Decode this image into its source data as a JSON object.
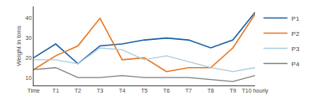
{
  "chart_data": {
    "type": "line",
    "categories": [
      "Time",
      "T1",
      "T2",
      "T3",
      "T4",
      "T5",
      "T6",
      "T7",
      "T8",
      "T9",
      "T10 hourly"
    ],
    "series": [
      {
        "name": "P1",
        "color": "#1a5fa8",
        "values": [
          20,
          27,
          17,
          26,
          27,
          29,
          30,
          29,
          25,
          29,
          43
        ]
      },
      {
        "name": "P2",
        "color": "#e8761e",
        "values": [
          14,
          21,
          26,
          40,
          19,
          20,
          13,
          15,
          15,
          25,
          42
        ]
      },
      {
        "name": "P3",
        "color": "#a8cce0",
        "values": [
          19,
          19,
          17,
          25,
          24,
          19,
          21,
          18,
          15,
          13,
          15
        ]
      },
      {
        "name": "P4",
        "color": "#7f7f7f",
        "values": [
          14,
          15,
          10,
          10,
          11,
          10,
          10,
          10,
          9,
          8,
          11
        ]
      }
    ],
    "ylabel": "Weight in tons",
    "ylim": [
      6,
      46
    ],
    "yticks": [
      10,
      20,
      30,
      40
    ],
    "grid": false,
    "legend": "right"
  }
}
